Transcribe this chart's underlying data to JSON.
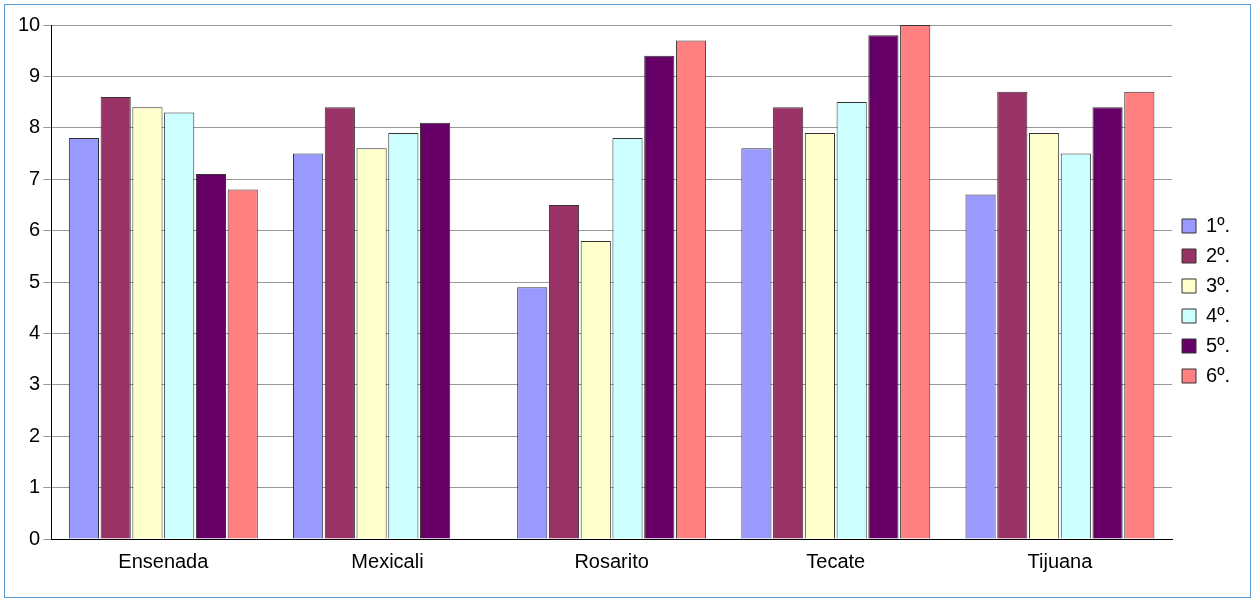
{
  "chart_data": {
    "type": "bar",
    "categories": [
      "Ensenada",
      "Mexicali",
      "Rosarito",
      "Tecate",
      "Tijuana"
    ],
    "series": [
      {
        "name": "1º.",
        "color": "#9999ff",
        "values": [
          7.8,
          7.5,
          4.9,
          7.6,
          6.7
        ]
      },
      {
        "name": "2º.",
        "color": "#993366",
        "values": [
          8.6,
          8.4,
          6.5,
          8.4,
          8.7
        ]
      },
      {
        "name": "3º.",
        "color": "#ffffcc",
        "values": [
          8.4,
          7.6,
          5.8,
          7.9,
          7.9
        ]
      },
      {
        "name": "4º.",
        "color": "#ccffff",
        "values": [
          8.3,
          7.9,
          7.8,
          8.5,
          7.5
        ]
      },
      {
        "name": "5º.",
        "color": "#660066",
        "values": [
          7.1,
          8.1,
          9.4,
          9.8,
          8.4
        ]
      },
      {
        "name": "6º.",
        "color": "#ff8080",
        "values": [
          6.8,
          0,
          9.7,
          10,
          8.7
        ]
      }
    ],
    "ylim": [
      0,
      10
    ],
    "yticks": [
      0,
      1,
      2,
      3,
      4,
      5,
      6,
      7,
      8,
      9,
      10
    ],
    "grid": "y",
    "legend": "right"
  }
}
